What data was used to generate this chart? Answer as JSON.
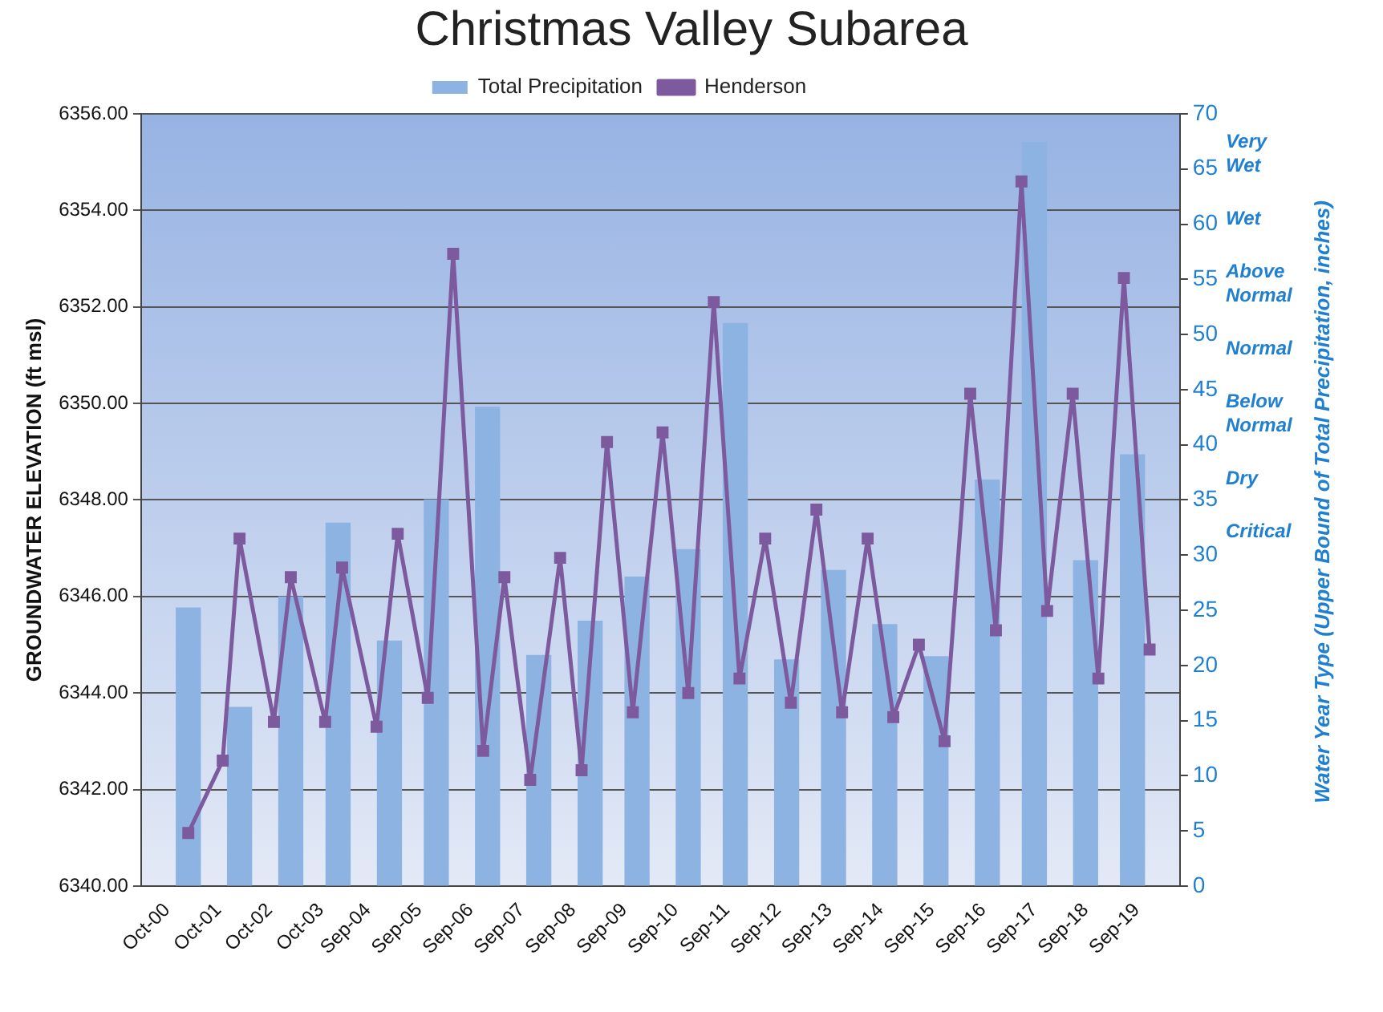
{
  "chart_data": {
    "type": "bar",
    "title": "Christmas Valley Subarea",
    "ylabel": "GROUNDWATER ELEVATION (ft msl)",
    "y2label": "Water Year Type (Upper Bound of Total Precipitation, inches)",
    "series": [
      {
        "name": "Total Precipitation",
        "axis": "y2",
        "color": "#8db3e2",
        "x": [
          "2001-03",
          "2002-03",
          "2003-03",
          "2004-02",
          "2005-02",
          "2006-01",
          "2007-01",
          "2008-01",
          "2009-01",
          "2009-12",
          "2010-12",
          "2011-11",
          "2012-11",
          "2013-10",
          "2014-10",
          "2015-10",
          "2016-10",
          "2017-09",
          "2018-09",
          "2019-08"
        ],
        "values": [
          25.2,
          16.2,
          26.2,
          32.9,
          22.2,
          35,
          43.4,
          20.9,
          24,
          28,
          30.5,
          51,
          20.5,
          28.6,
          23.7,
          20.8,
          36.8,
          67.4,
          29.5,
          39.1
        ]
      },
      {
        "name": "Henderson",
        "type": "line",
        "color": "#7d5a9e",
        "x": [
          "2001-03",
          "2001-11",
          "2002-03",
          "2002-11",
          "2003-03",
          "2003-11",
          "2004-03",
          "2004-11",
          "2005-04",
          "2005-11",
          "2006-05",
          "2006-12",
          "2007-05",
          "2007-11",
          "2008-06",
          "2008-11",
          "2009-05",
          "2009-11",
          "2010-06",
          "2010-12",
          "2011-06",
          "2011-12",
          "2012-06",
          "2012-12",
          "2013-06",
          "2013-12",
          "2014-06",
          "2014-12",
          "2015-06",
          "2015-12",
          "2016-06",
          "2016-12",
          "2017-06",
          "2017-12",
          "2018-06",
          "2018-12",
          "2019-06",
          "2019-12"
        ],
        "values": [
          6341.1,
          6342.6,
          6347.2,
          6343.4,
          6346.4,
          6343.4,
          6346.6,
          6343.3,
          6347.3,
          6343.9,
          6353.1,
          6342.8,
          6346.4,
          6342.2,
          6346.8,
          6342.4,
          6349.2,
          6343.6,
          6349.4,
          6344.0,
          6352.1,
          6344.3,
          6347.2,
          6343.8,
          6347.8,
          6343.6,
          6347.2,
          6343.5,
          6345.0,
          6343.0,
          6350.2,
          6345.3,
          6354.6,
          6345.7,
          6350.2,
          6344.3,
          6352.6,
          6344.9
        ]
      }
    ],
    "xlim": [
      "2000-10",
      "2020-01"
    ],
    "xticks": [
      {
        "value": "2000-10",
        "label": "Oct-00"
      },
      {
        "value": "2001-10",
        "label": "Oct-01"
      },
      {
        "value": "2002-10",
        "label": "Oct-02"
      },
      {
        "value": "2003-10",
        "label": "Oct-03"
      },
      {
        "value": "2004-09",
        "label": "Sep-04"
      },
      {
        "value": "2005-09",
        "label": "Sep-05"
      },
      {
        "value": "2006-09",
        "label": "Sep-06"
      },
      {
        "value": "2007-09",
        "label": "Sep-07"
      },
      {
        "value": "2008-09",
        "label": "Sep-08"
      },
      {
        "value": "2009-09",
        "label": "Sep-09"
      },
      {
        "value": "2010-09",
        "label": "Sep-10"
      },
      {
        "value": "2011-09",
        "label": "Sep-11"
      },
      {
        "value": "2012-09",
        "label": "Sep-12"
      },
      {
        "value": "2013-09",
        "label": "Sep-13"
      },
      {
        "value": "2014-09",
        "label": "Sep-14"
      },
      {
        "value": "2015-09",
        "label": "Sep-15"
      },
      {
        "value": "2016-09",
        "label": "Sep-16"
      },
      {
        "value": "2017-09",
        "label": "Sep-17"
      },
      {
        "value": "2018-09",
        "label": "Sep-18"
      },
      {
        "value": "2019-09",
        "label": "Sep-19"
      }
    ],
    "ylim": [
      6340,
      6356
    ],
    "yticks": [
      {
        "value": 6340,
        "label": "6340.00"
      },
      {
        "value": 6342,
        "label": "6342.00"
      },
      {
        "value": 6344,
        "label": "6344.00"
      },
      {
        "value": 6346,
        "label": "6346.00"
      },
      {
        "value": 6348,
        "label": "6348.00"
      },
      {
        "value": 6350,
        "label": "6350.00"
      },
      {
        "value": 6352,
        "label": "6352.00"
      },
      {
        "value": 6354,
        "label": "6354.00"
      },
      {
        "value": 6356,
        "label": "6356.00"
      }
    ],
    "y2lim": [
      0,
      70
    ],
    "y2ticks": [
      0,
      5,
      10,
      15,
      20,
      25,
      30,
      35,
      40,
      45,
      50,
      55,
      60,
      65,
      70
    ],
    "annotations": [
      "Very Wet",
      "Wet",
      "Above Normal",
      "Normal",
      "Below Normal",
      "Dry",
      "Critical"
    ],
    "grid": "y",
    "legend": "top",
    "marker": "square"
  }
}
